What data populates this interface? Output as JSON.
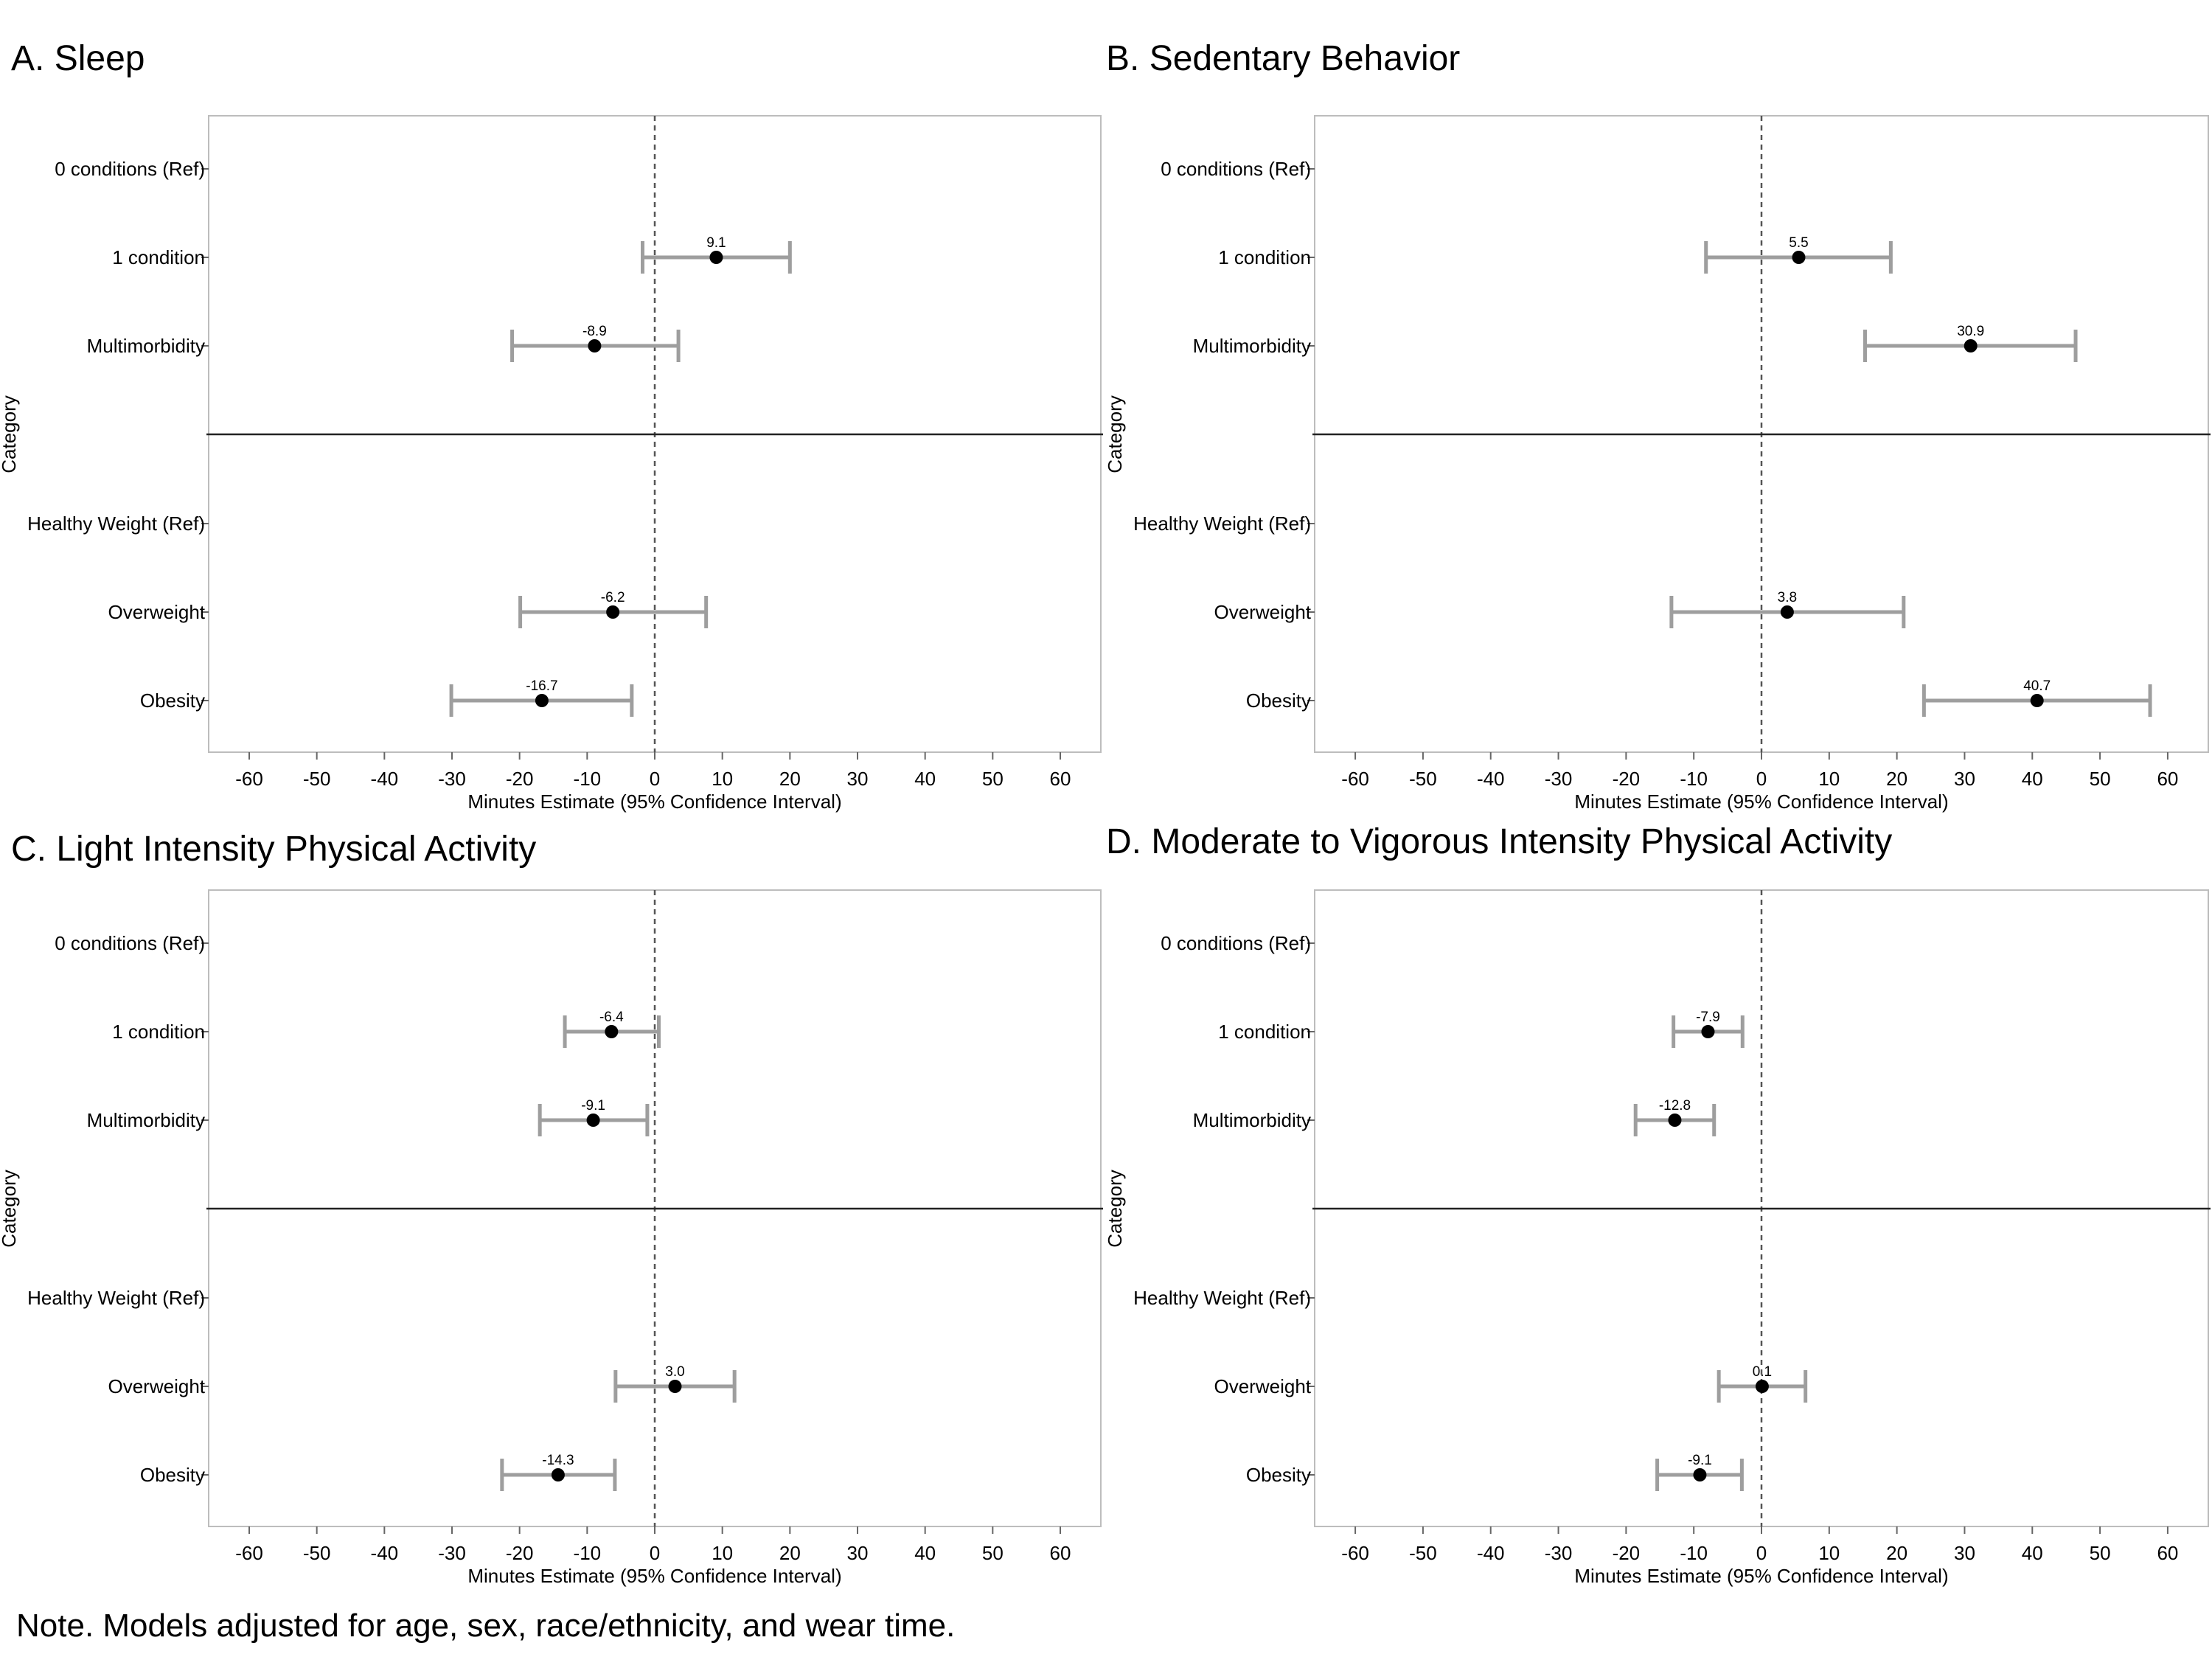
{
  "note": "Note. Models adjusted for age, sex, race/ethnicity, and wear time.",
  "chart_data": [
    {
      "type": "forest",
      "panel_title": "A. Sleep",
      "xlabel": "Minutes Estimate (95% Confidence Interval)",
      "ylabel": "Category",
      "xlim": [
        -66,
        66
      ],
      "xticks": [
        -60,
        -50,
        -40,
        -30,
        -20,
        -10,
        0,
        10,
        20,
        30,
        40,
        50,
        60
      ],
      "rows": [
        {
          "label": "0 conditions (Ref)",
          "estimate": null,
          "lo": null,
          "hi": null,
          "value_label": ""
        },
        {
          "label": "1 condition",
          "estimate": 9.1,
          "lo": -1.8,
          "hi": 20.0,
          "value_label": "9.1"
        },
        {
          "label": "Multimorbidity",
          "estimate": -8.9,
          "lo": -21.1,
          "hi": 3.5,
          "value_label": "-8.9"
        },
        {
          "label": "Healthy Weight (Ref)",
          "estimate": null,
          "lo": null,
          "hi": null,
          "value_label": ""
        },
        {
          "label": "Overweight",
          "estimate": -6.2,
          "lo": -19.9,
          "hi": 7.6,
          "value_label": "-6.2"
        },
        {
          "label": "Obesity",
          "estimate": -16.7,
          "lo": -30.1,
          "hi": -3.4,
          "value_label": "-16.7"
        }
      ]
    },
    {
      "type": "forest",
      "panel_title": "B. Sedentary Behavior",
      "xlabel": "Minutes Estimate (95% Confidence Interval)",
      "ylabel": "Category",
      "xlim": [
        -66,
        66
      ],
      "xticks": [
        -60,
        -50,
        -40,
        -30,
        -20,
        -10,
        0,
        10,
        20,
        30,
        40,
        50,
        60
      ],
      "rows": [
        {
          "label": "0 conditions (Ref)",
          "estimate": null,
          "lo": null,
          "hi": null,
          "value_label": ""
        },
        {
          "label": "1 condition",
          "estimate": 5.5,
          "lo": -8.2,
          "hi": 19.1,
          "value_label": "5.5"
        },
        {
          "label": "Multimorbidity",
          "estimate": 30.9,
          "lo": 15.3,
          "hi": 46.4,
          "value_label": "30.9"
        },
        {
          "label": "Healthy Weight (Ref)",
          "estimate": null,
          "lo": null,
          "hi": null,
          "value_label": ""
        },
        {
          "label": "Overweight",
          "estimate": 3.8,
          "lo": -13.3,
          "hi": 21.0,
          "value_label": "3.8"
        },
        {
          "label": "Obesity",
          "estimate": 40.7,
          "lo": 24.0,
          "hi": 57.4,
          "value_label": "40.7"
        }
      ]
    },
    {
      "type": "forest",
      "panel_title": "C. Light Intensity Physical Activity",
      "xlabel": "Minutes Estimate (95% Confidence Interval)",
      "ylabel": "Category",
      "xlim": [
        -66,
        66
      ],
      "xticks": [
        -60,
        -50,
        -40,
        -30,
        -20,
        -10,
        0,
        10,
        20,
        30,
        40,
        50,
        60
      ],
      "rows": [
        {
          "label": "0 conditions (Ref)",
          "estimate": null,
          "lo": null,
          "hi": null,
          "value_label": ""
        },
        {
          "label": "1 condition",
          "estimate": -6.4,
          "lo": -13.3,
          "hi": 0.6,
          "value_label": "-6.4"
        },
        {
          "label": "Multimorbidity",
          "estimate": -9.1,
          "lo": -17.0,
          "hi": -1.1,
          "value_label": "-9.1"
        },
        {
          "label": "Healthy Weight (Ref)",
          "estimate": null,
          "lo": null,
          "hi": null,
          "value_label": ""
        },
        {
          "label": "Overweight",
          "estimate": 3.0,
          "lo": -5.8,
          "hi": 11.8,
          "value_label": "3.0"
        },
        {
          "label": "Obesity",
          "estimate": -14.3,
          "lo": -22.6,
          "hi": -5.9,
          "value_label": "-14.3"
        }
      ]
    },
    {
      "type": "forest",
      "panel_title": "D. Moderate to Vigorous Intensity Physical Activity",
      "xlabel": "Minutes Estimate (95% Confidence Interval)",
      "ylabel": "Category",
      "xlim": [
        -66,
        66
      ],
      "xticks": [
        -60,
        -50,
        -40,
        -30,
        -20,
        -10,
        0,
        10,
        20,
        30,
        40,
        50,
        60
      ],
      "rows": [
        {
          "label": "0 conditions (Ref)",
          "estimate": null,
          "lo": null,
          "hi": null,
          "value_label": ""
        },
        {
          "label": "1 condition",
          "estimate": -7.9,
          "lo": -13.0,
          "hi": -2.8,
          "value_label": "-7.9"
        },
        {
          "label": "Multimorbidity",
          "estimate": -12.8,
          "lo": -18.6,
          "hi": -7.0,
          "value_label": "-12.8"
        },
        {
          "label": "Healthy Weight (Ref)",
          "estimate": null,
          "lo": null,
          "hi": null,
          "value_label": ""
        },
        {
          "label": "Overweight",
          "estimate": 0.1,
          "lo": -6.3,
          "hi": 6.5,
          "value_label": "0.1"
        },
        {
          "label": "Obesity",
          "estimate": -9.1,
          "lo": -15.4,
          "hi": -2.9,
          "value_label": "-9.1"
        }
      ]
    }
  ]
}
